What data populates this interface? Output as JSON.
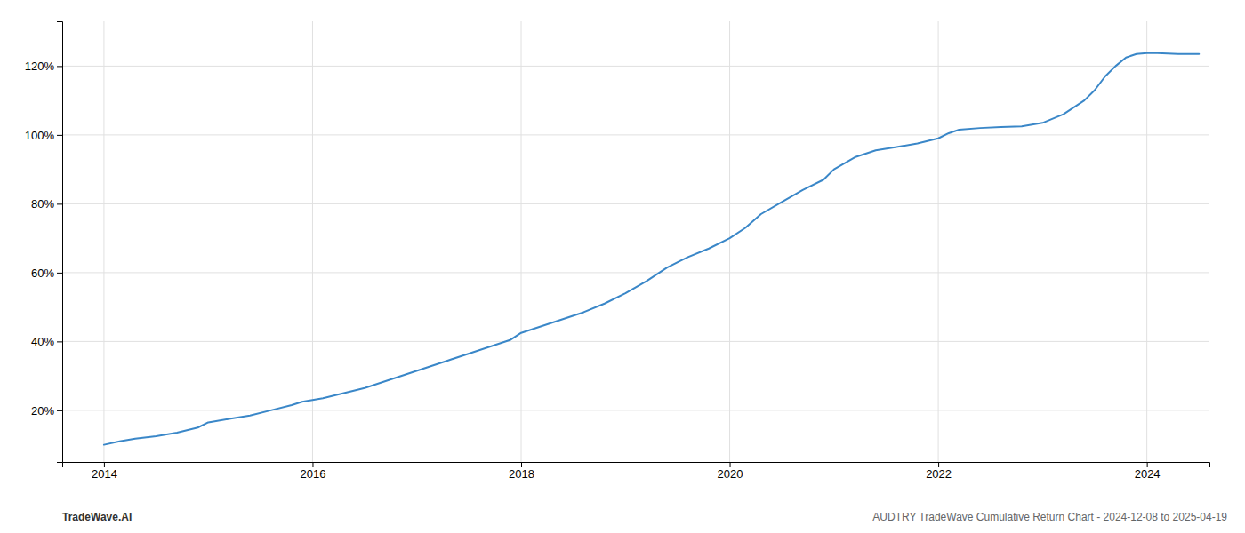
{
  "chart_data": {
    "type": "line",
    "x": [
      2014.0,
      2014.15,
      2014.3,
      2014.5,
      2014.7,
      2014.9,
      2015.0,
      2015.2,
      2015.4,
      2015.6,
      2015.8,
      2015.9,
      2016.1,
      2016.3,
      2016.5,
      2016.7,
      2016.9,
      2017.1,
      2017.3,
      2017.5,
      2017.7,
      2017.9,
      2018.0,
      2018.2,
      2018.4,
      2018.6,
      2018.8,
      2019.0,
      2019.2,
      2019.4,
      2019.6,
      2019.8,
      2020.0,
      2020.15,
      2020.3,
      2020.5,
      2020.7,
      2020.9,
      2021.0,
      2021.2,
      2021.4,
      2021.6,
      2021.8,
      2022.0,
      2022.1,
      2022.2,
      2022.4,
      2022.6,
      2022.8,
      2023.0,
      2023.2,
      2023.4,
      2023.5,
      2023.6,
      2023.7,
      2023.8,
      2023.9,
      2024.0,
      2024.1,
      2024.3,
      2024.5
    ],
    "values": [
      10.0,
      11.0,
      11.8,
      12.5,
      13.5,
      15.0,
      16.5,
      17.5,
      18.5,
      20.0,
      21.5,
      22.5,
      23.5,
      25.0,
      26.5,
      28.5,
      30.5,
      32.5,
      34.5,
      36.5,
      38.5,
      40.5,
      42.5,
      44.5,
      46.5,
      48.5,
      51.0,
      54.0,
      57.5,
      61.5,
      64.5,
      67.0,
      70.0,
      73.0,
      77.0,
      80.5,
      84.0,
      87.0,
      90.0,
      93.5,
      95.5,
      96.5,
      97.5,
      99.0,
      100.5,
      101.5,
      102.0,
      102.3,
      102.5,
      103.5,
      106.0,
      110.0,
      113.0,
      117.0,
      120.0,
      122.5,
      123.5,
      123.8,
      123.8,
      123.5,
      123.5
    ],
    "color": "#3a87c8",
    "xlim": [
      2013.6,
      2024.6
    ],
    "ylim": [
      5,
      133
    ],
    "xticks": [
      2014,
      2016,
      2018,
      2020,
      2022,
      2024
    ],
    "yticks": [
      {
        "value": 20,
        "label": "20%"
      },
      {
        "value": 40,
        "label": "40%"
      },
      {
        "value": 60,
        "label": "60%"
      },
      {
        "value": 80,
        "label": "80%"
      },
      {
        "value": 100,
        "label": "100%"
      },
      {
        "value": 120,
        "label": "120%"
      }
    ],
    "grid": true,
    "annotations": [
      "TradeWave.AI",
      "AUDTRY TradeWave Cumulative Return Chart - 2024-12-08 to 2025-04-19"
    ]
  }
}
